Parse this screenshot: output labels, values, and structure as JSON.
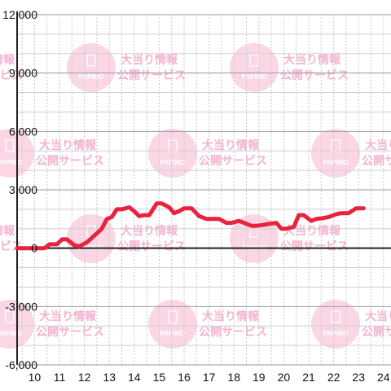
{
  "watermark": {
    "line1": "大当り情報",
    "line2": "公開サービス",
    "logo": "PAPIMO",
    "color": "#f9c6dc"
  },
  "chart_data": {
    "type": "line",
    "title": "",
    "xlabel": "",
    "ylabel": "",
    "xlim": [
      9.3,
      24.3
    ],
    "ylim": [
      -6000,
      12000
    ],
    "x_ticks": [
      10,
      11,
      12,
      13,
      14,
      15,
      16,
      17,
      18,
      19,
      20,
      21,
      22,
      23,
      24
    ],
    "x_tick_labels": [
      "10",
      "11",
      "12",
      "13",
      "14",
      "15",
      "16",
      "17",
      "18",
      "19",
      "20",
      "21",
      "22",
      "23",
      "24"
    ],
    "y_ticks": [
      -6000,
      -3000,
      0,
      3000,
      6000,
      9000,
      12000
    ],
    "y_tick_labels": [
      "-6,000",
      "-3,000",
      "0",
      "3,000",
      "6,000",
      "9,000",
      "12,000"
    ],
    "grid": true,
    "line_color": "#e8233e",
    "series": [
      {
        "x": [
          9.3,
          10.4,
          10.6,
          10.9,
          11.1,
          11.3,
          11.6,
          11.8,
          12.1,
          12.4,
          12.7,
          12.9,
          13.1,
          13.3,
          13.5,
          13.8,
          14.0,
          14.2,
          14.4,
          14.6,
          14.9,
          15.1,
          15.4,
          15.6,
          15.8,
          16.0,
          16.3,
          16.6,
          16.9,
          17.1,
          17.4,
          17.7,
          17.9,
          18.2,
          18.4,
          18.7,
          18.9,
          19.2,
          19.4,
          19.7,
          19.9,
          20.1,
          20.4,
          20.6,
          20.8,
          21.1,
          21.3,
          21.6,
          21.8,
          22.1,
          22.3,
          22.6,
          22.9,
          23.2
        ],
        "y": [
          0,
          0,
          200,
          200,
          450,
          450,
          150,
          100,
          300,
          650,
          1000,
          1500,
          1600,
          2000,
          2000,
          2100,
          1900,
          1650,
          1700,
          1700,
          2300,
          2300,
          2100,
          1800,
          1900,
          2050,
          2050,
          1650,
          1500,
          1500,
          1500,
          1300,
          1300,
          1400,
          1300,
          1150,
          1150,
          1200,
          1250,
          1300,
          1000,
          1000,
          1100,
          1700,
          1700,
          1400,
          1500,
          1550,
          1600,
          1750,
          1800,
          1800,
          2050,
          2050
        ]
      }
    ]
  }
}
